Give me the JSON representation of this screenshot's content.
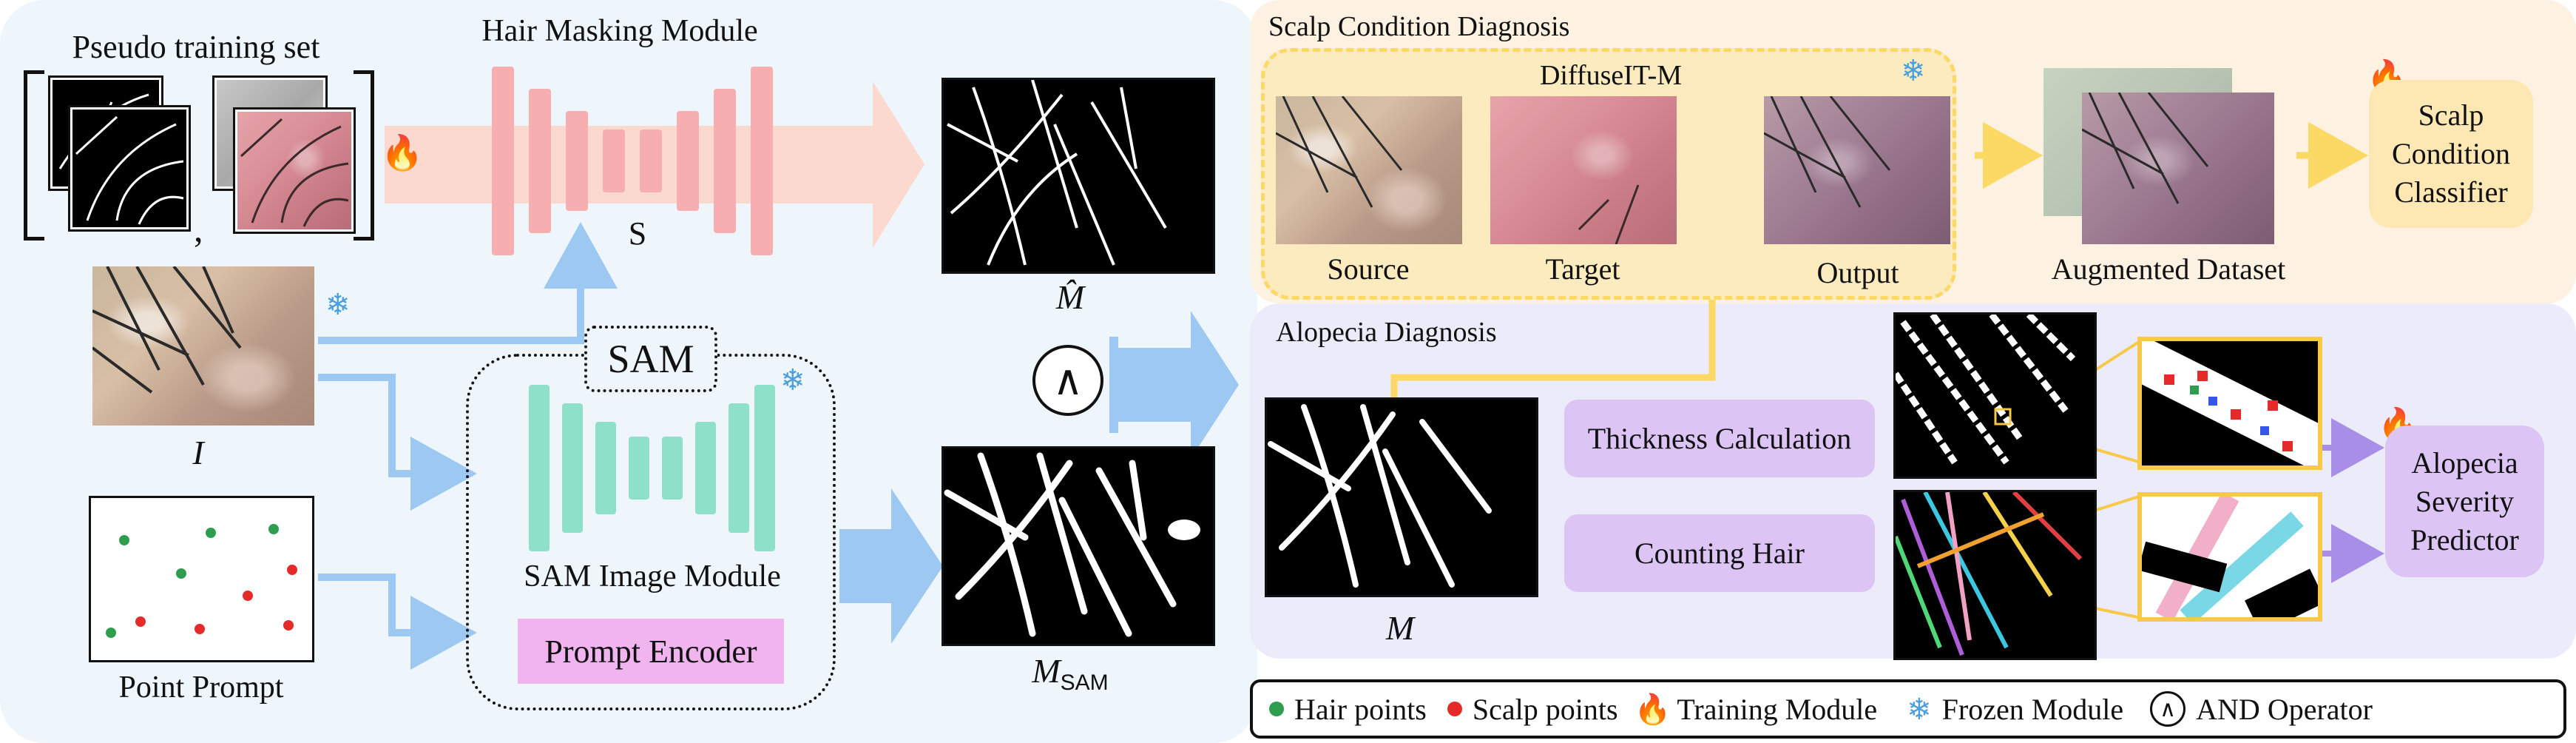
{
  "hair_masking": {
    "pseudo_training_set": "Pseudo training set",
    "comma": ",",
    "title": "Hair Masking Module",
    "s_label": "S",
    "input_label": "I",
    "mhat_label": "M̂"
  },
  "sam": {
    "title": "SAM",
    "image_module": "SAM Image Module",
    "prompt_encoder": "Prompt Encoder",
    "point_prompt": "Point Prompt",
    "msam_label": "M",
    "msam_sub": "SAM"
  },
  "and_operator_symbol": "∧",
  "scalp_condition": {
    "title": "Scalp Condition Diagnosis",
    "diffuse_title": "DiffuseIT-M",
    "source": "Source",
    "target": "Target",
    "output": "Output",
    "augmented": "Augmented Dataset",
    "classifier": [
      "Scalp",
      "Condition",
      "Classifier"
    ]
  },
  "alopecia": {
    "title": "Alopecia Diagnosis",
    "m_label": "M",
    "thickness": "Thickness Calculation",
    "counting": "Counting Hair",
    "predictor": [
      "Alopecia",
      "Severity",
      "Predictor"
    ]
  },
  "legend": {
    "hair_points": "Hair points",
    "scalp_points": "Scalp points",
    "training": "Training Module",
    "frozen": "Frozen Module",
    "and_op": "AND Operator",
    "and_symbol": "∧"
  },
  "colors": {
    "left_panel": "#eef6fc",
    "scalp_panel": "#fdf1e2",
    "alopecia_panel": "#ecebfa",
    "hair_mask_bars": "#f6aeb0",
    "sam_bars": "#8fe0c8",
    "blue_arrow": "#9cc8f2",
    "yellow_arrow": "#fcd964",
    "purple_box": "#dcc4f5",
    "prompt_encoder": "#f0b4ee",
    "hair_point": "#2e9e4e",
    "scalp_point": "#e52a2a"
  },
  "icons": [
    "flame-icon",
    "snowflake-icon",
    "and-operator-icon"
  ]
}
